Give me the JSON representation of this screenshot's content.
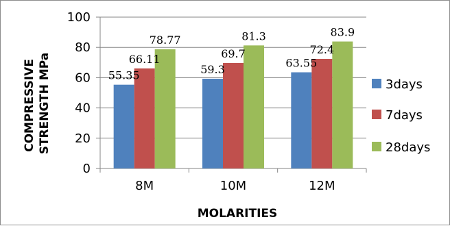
{
  "chart_data": {
    "type": "bar",
    "categories": [
      "8M",
      "10M",
      "12M"
    ],
    "series": [
      {
        "name": "3days",
        "values": [
          55.35,
          59.3,
          63.55
        ],
        "color": "#4f81bd"
      },
      {
        "name": "7days",
        "values": [
          66.11,
          69.7,
          72.4
        ],
        "color": "#c0504d"
      },
      {
        "name": "28days",
        "values": [
          78.77,
          81.3,
          83.9
        ],
        "color": "#9bbb59"
      }
    ],
    "data_labels": [
      [
        "55.35",
        "59.3",
        "63.55"
      ],
      [
        "66.11",
        "69.7",
        "72.4"
      ],
      [
        "78.77",
        "81.3",
        "83.9"
      ]
    ],
    "xlabel": "MOLARITIES",
    "ylabel_lines": [
      "COMPRESSIVE",
      "STRENGTH MPa"
    ],
    "ylim": [
      0,
      100
    ],
    "yticks": [
      0,
      20,
      40,
      60,
      80,
      100
    ],
    "ytick_labels": [
      "0",
      "20",
      "40",
      "60",
      "80",
      "100"
    ],
    "grid": "horizontal",
    "legend_position": "right"
  }
}
